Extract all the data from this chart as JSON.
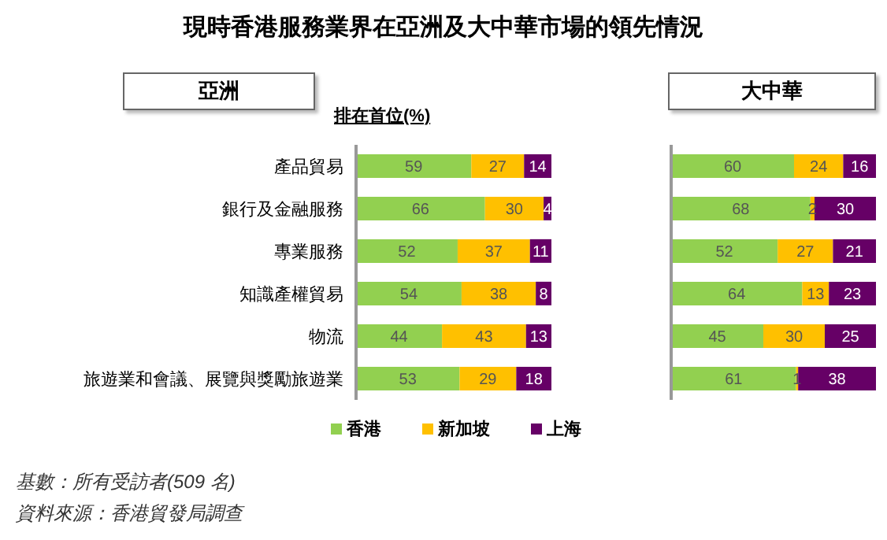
{
  "chart_data": [
    {
      "type": "bar",
      "orientation": "horizontal",
      "stacked": true,
      "title": "現時香港服務業界在亞洲及大中華市場的領先情況",
      "subtitle": "亞洲",
      "xlabel": "排在首位(%)",
      "categories": [
        "產品貿易",
        "銀行及金融服務",
        "專業服務",
        "知識產權貿易",
        "物流",
        "旅遊業和會議、展覽與獎勵旅遊業"
      ],
      "series": [
        {
          "name": "香港",
          "color": "#92d050",
          "values": [
            59,
            66,
            52,
            54,
            44,
            53
          ]
        },
        {
          "name": "新加坡",
          "color": "#ffc000",
          "values": [
            27,
            30,
            37,
            38,
            43,
            29
          ]
        },
        {
          "name": "上海",
          "color": "#660066",
          "values": [
            14,
            4,
            11,
            8,
            13,
            18
          ]
        }
      ],
      "xlim": [
        0,
        100
      ],
      "tick_labels": "y",
      "data_labels": true,
      "legend": "bottom",
      "grid": false,
      "annotations": [
        "基數：所有受訪者(509 名)",
        "資料來源：香港貿發局調查"
      ]
    },
    {
      "type": "bar",
      "orientation": "horizontal",
      "stacked": true,
      "title": "大中華",
      "categories": [
        null,
        null,
        null,
        null,
        null,
        null
      ],
      "series": [
        {
          "color": "#92d050",
          "values": [
            60,
            68,
            52,
            64,
            45,
            61
          ]
        },
        {
          "color": "#ffc000",
          "values": [
            24,
            2,
            27,
            13,
            30,
            1
          ]
        },
        {
          "color": "#660066",
          "values": [
            16,
            30,
            21,
            23,
            25,
            38
          ]
        }
      ],
      "xlim": [
        0,
        100
      ],
      "tick_labels": false,
      "data_labels": true,
      "grid": false
    }
  ]
}
